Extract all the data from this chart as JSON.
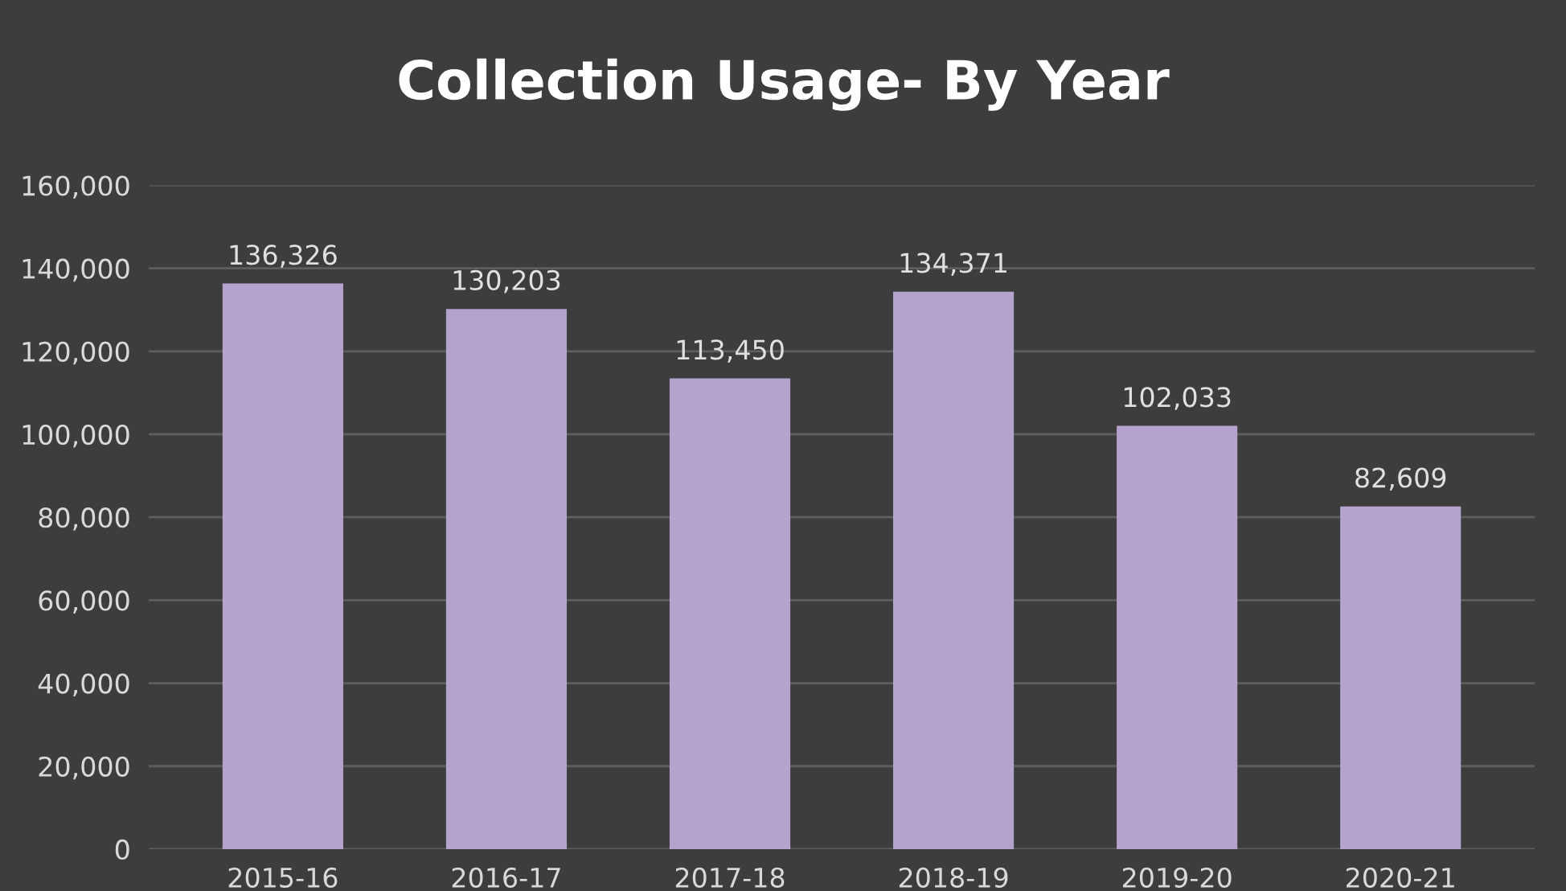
{
  "chart_data": {
    "type": "bar",
    "title": "Collection Usage- By Year",
    "categories": [
      "2015-16",
      "2016-17",
      "2017-18",
      "2018-19",
      "2019-20",
      "2020-21"
    ],
    "values": [
      136326,
      130203,
      113450,
      134371,
      102033,
      82609
    ],
    "color": "#b4a3cc",
    "value_labels": [
      "136,326",
      "130,203",
      "113,450",
      "134,371",
      "102,033",
      "82,609"
    ],
    "ylim": [
      0,
      160000
    ],
    "yticks": [
      {
        "value": 0,
        "label": "0"
      },
      {
        "value": 20000,
        "label": "20,000"
      },
      {
        "value": 40000,
        "label": "40,000"
      },
      {
        "value": 60000,
        "label": "60,000"
      },
      {
        "value": 80000,
        "label": "80,000"
      },
      {
        "value": 100000,
        "label": "100,000"
      },
      {
        "value": 120000,
        "label": "120,000"
      },
      {
        "value": 140000,
        "label": "140,000"
      },
      {
        "value": 160000,
        "label": "160,000"
      }
    ],
    "grid": "y"
  }
}
